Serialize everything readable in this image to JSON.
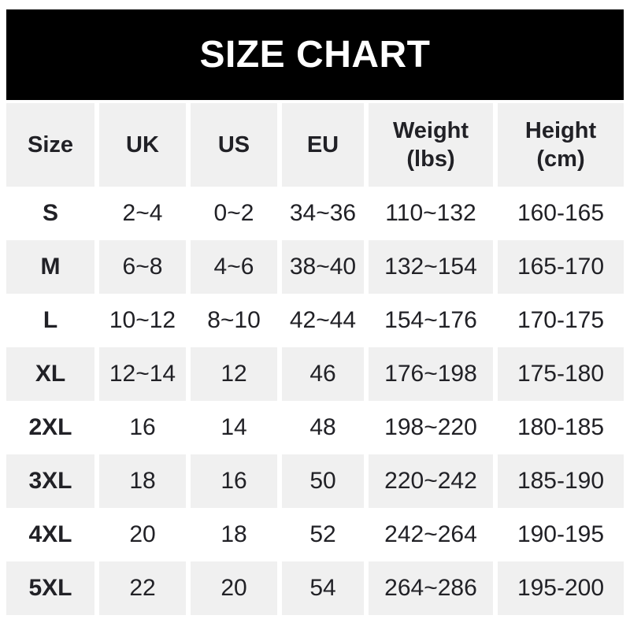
{
  "banner": {
    "title": "SIZE CHART"
  },
  "colors": {
    "banner_bg": "#000000",
    "banner_text": "#ffffff",
    "alt_row_bg": "#f0f0f0",
    "text": "#212126"
  },
  "table": {
    "headers": {
      "size": "Size",
      "uk": "UK",
      "us": "US",
      "eu": "EU",
      "weight": "Weight\n(lbs)",
      "height": "Height\n(cm)"
    },
    "rows": [
      {
        "size": "S",
        "uk": "2~4",
        "us": "0~2",
        "eu": "34~36",
        "weight": "110~132",
        "height": "160-165"
      },
      {
        "size": "M",
        "uk": "6~8",
        "us": "4~6",
        "eu": "38~40",
        "weight": "132~154",
        "height": "165-170"
      },
      {
        "size": "L",
        "uk": "10~12",
        "us": "8~10",
        "eu": "42~44",
        "weight": "154~176",
        "height": "170-175"
      },
      {
        "size": "XL",
        "uk": "12~14",
        "us": "12",
        "eu": "46",
        "weight": "176~198",
        "height": "175-180"
      },
      {
        "size": "2XL",
        "uk": "16",
        "us": "14",
        "eu": "48",
        "weight": "198~220",
        "height": "180-185"
      },
      {
        "size": "3XL",
        "uk": "18",
        "us": "16",
        "eu": "50",
        "weight": "220~242",
        "height": "185-190"
      },
      {
        "size": "4XL",
        "uk": "20",
        "us": "18",
        "eu": "52",
        "weight": "242~264",
        "height": "190-195"
      },
      {
        "size": "5XL",
        "uk": "22",
        "us": "20",
        "eu": "54",
        "weight": "264~286",
        "height": "195-200"
      }
    ]
  }
}
